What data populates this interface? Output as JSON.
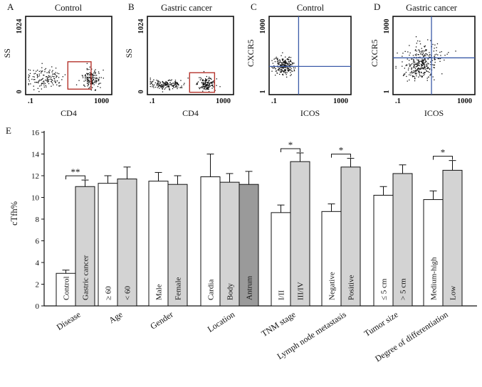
{
  "panels": [
    {
      "letter": "A",
      "title": "Control",
      "ylabel": "SS",
      "xlabel": "CD4",
      "y_ticks": [
        "1024",
        "0"
      ],
      "x_ticks": [
        ".1",
        "1000"
      ],
      "gate": "box",
      "clusters": [
        {
          "cx": 0.22,
          "cy": 0.78,
          "sx": 0.11,
          "sy": 0.07,
          "n": 140
        },
        {
          "cx": 0.76,
          "cy": 0.8,
          "sx": 0.05,
          "sy": 0.06,
          "n": 160
        }
      ]
    },
    {
      "letter": "B",
      "title": "Gastric cancer",
      "ylabel": "SS",
      "xlabel": "CD4",
      "y_ticks": [
        "1024",
        "0"
      ],
      "x_ticks": [
        ".1",
        "1000"
      ],
      "gate": "box",
      "clusters": [
        {
          "cx": 0.22,
          "cy": 0.86,
          "sx": 0.11,
          "sy": 0.03,
          "n": 170
        },
        {
          "cx": 0.68,
          "cy": 0.86,
          "sx": 0.05,
          "sy": 0.04,
          "n": 150
        }
      ]
    },
    {
      "letter": "C",
      "title": "Control",
      "ylabel": "CXCR5",
      "xlabel": "ICOS",
      "y_ticks": [
        "1000",
        "1"
      ],
      "x_ticks": [
        ".1",
        "1000"
      ],
      "gate": "quadrant",
      "clusters": [
        {
          "cx": 0.17,
          "cy": 0.63,
          "sx": 0.06,
          "sy": 0.06,
          "n": 220
        }
      ]
    },
    {
      "letter": "D",
      "title": "Gastric cancer",
      "ylabel": "CXCR5",
      "xlabel": "ICOS",
      "y_ticks": [
        "1000",
        "1"
      ],
      "x_ticks": [
        ".1",
        "1000"
      ],
      "gate": "quadrant",
      "clusters": [
        {
          "cx": 0.33,
          "cy": 0.62,
          "sx": 0.1,
          "sy": 0.09,
          "n": 260
        },
        {
          "cx": 0.43,
          "cy": 0.46,
          "sx": 0.12,
          "sy": 0.07,
          "n": 70
        }
      ]
    }
  ],
  "chart_data": {
    "type": "bar",
    "panel_letter": "E",
    "ylabel": "cTfh%",
    "ylim": [
      0,
      16
    ],
    "y_ticks": [
      0,
      2,
      4,
      6,
      8,
      10,
      12,
      14,
      16
    ],
    "colors": {
      "white": "#ffffff",
      "gray": "#d3d3d3",
      "dark": "#9a9a9a",
      "stroke": "#111111"
    },
    "groups": [
      {
        "name": "Disease",
        "bars": [
          {
            "label": "Control",
            "value": 3.0,
            "error": 0.3,
            "color": "white"
          },
          {
            "label": "Gastric cancer",
            "value": 11.0,
            "error": 0.6,
            "color": "gray"
          }
        ],
        "significance": "**"
      },
      {
        "name": "Age",
        "bars": [
          {
            "label": "≥ 60",
            "value": 11.3,
            "error": 0.7,
            "color": "white"
          },
          {
            "label": "< 60",
            "value": 11.7,
            "error": 1.1,
            "color": "gray"
          }
        ]
      },
      {
        "name": "Gender",
        "bars": [
          {
            "label": "Male",
            "value": 11.5,
            "error": 0.8,
            "color": "white"
          },
          {
            "label": "Female",
            "value": 11.2,
            "error": 0.8,
            "color": "gray"
          }
        ]
      },
      {
        "name": "Location",
        "bars": [
          {
            "label": "Cardia",
            "value": 11.9,
            "error": 2.1,
            "color": "white"
          },
          {
            "label": "Body",
            "value": 11.4,
            "error": 0.8,
            "color": "gray"
          },
          {
            "label": "Antrum",
            "value": 11.2,
            "error": 1.2,
            "color": "dark"
          }
        ]
      },
      {
        "name": "TNM stage",
        "bars": [
          {
            "label": "I/II",
            "value": 8.6,
            "error": 0.7,
            "color": "white"
          },
          {
            "label": "III/IV",
            "value": 13.3,
            "error": 0.8,
            "color": "gray"
          }
        ],
        "significance": "*"
      },
      {
        "name": "Lymph node metastasis",
        "bars": [
          {
            "label": "Negative",
            "value": 8.7,
            "error": 0.7,
            "color": "white"
          },
          {
            "label": "Positive",
            "value": 12.8,
            "error": 0.8,
            "color": "gray"
          }
        ],
        "significance": "*"
      },
      {
        "name": "Tumor size",
        "bars": [
          {
            "label": "≤ 5 cm",
            "value": 10.2,
            "error": 0.8,
            "color": "white"
          },
          {
            "label": "> 5 cm",
            "value": 12.2,
            "error": 0.8,
            "color": "gray"
          }
        ]
      },
      {
        "name": "Degree of differentiation",
        "bars": [
          {
            "label": "Medium-high",
            "value": 9.8,
            "error": 0.8,
            "color": "white"
          },
          {
            "label": "Low",
            "value": 12.5,
            "error": 0.9,
            "color": "gray"
          }
        ],
        "significance": "*"
      }
    ]
  }
}
